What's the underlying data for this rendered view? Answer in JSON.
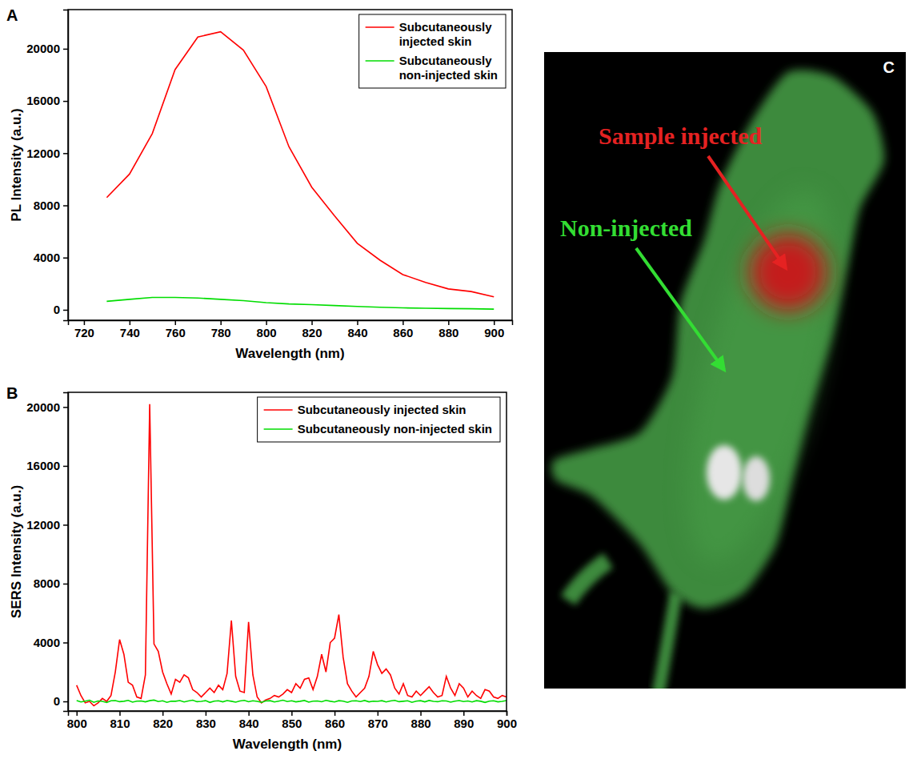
{
  "chart_data": [
    {
      "type": "line",
      "panel": "A",
      "x_label": "Wavelength (nm)",
      "y_label": "PL Intensity (a.u.)",
      "x": [
        730,
        740,
        750,
        760,
        770,
        780,
        790,
        800,
        810,
        820,
        830,
        840,
        850,
        860,
        870,
        880,
        890,
        900
      ],
      "series": [
        {
          "name": "Subcutaneously injected skin",
          "color": "#ff0000",
          "values": [
            8600,
            10400,
            13500,
            18400,
            20900,
            21300,
            19900,
            17100,
            12500,
            9400,
            7200,
            5100,
            3800,
            2700,
            2100,
            1600,
            1400,
            1000
          ]
        },
        {
          "name": "Subcutaneously non-injected skin",
          "color": "#00dd00",
          "values": [
            650,
            800,
            950,
            950,
            900,
            800,
            700,
            550,
            450,
            400,
            330,
            260,
            200,
            150,
            120,
            100,
            80,
            50
          ]
        }
      ],
      "xlim": [
        713,
        908
      ],
      "ylim": [
        -800,
        23000
      ],
      "xticks": [
        720,
        740,
        760,
        780,
        800,
        820,
        840,
        860,
        880,
        900
      ],
      "yticks": [
        0,
        4000,
        8000,
        12000,
        16000,
        20000
      ],
      "grid": false,
      "legend": "upper right"
    },
    {
      "type": "line",
      "panel": "B",
      "x_label": "Wavelength (nm)",
      "y_label": "SERS Intensity (a.u.)",
      "x": [
        800,
        801,
        802,
        803,
        804,
        805,
        806,
        807,
        808,
        809,
        810,
        811,
        812,
        813,
        814,
        815,
        816,
        817,
        818,
        819,
        820,
        821,
        822,
        823,
        824,
        825,
        826,
        827,
        828,
        829,
        830,
        831,
        832,
        833,
        834,
        835,
        836,
        837,
        838,
        839,
        840,
        841,
        842,
        843,
        844,
        845,
        846,
        847,
        848,
        849,
        850,
        851,
        852,
        853,
        854,
        855,
        856,
        857,
        858,
        859,
        860,
        861,
        862,
        863,
        864,
        865,
        866,
        867,
        868,
        869,
        870,
        871,
        872,
        873,
        874,
        875,
        876,
        877,
        878,
        879,
        880,
        881,
        882,
        883,
        884,
        885,
        886,
        887,
        888,
        889,
        890,
        891,
        892,
        893,
        894,
        895,
        896,
        897,
        898,
        899,
        900
      ],
      "series": [
        {
          "name": "Subcutaneously injected skin",
          "color": "#ff0000",
          "values": [
            1100,
            400,
            -100,
            0,
            -300,
            -100,
            200,
            0,
            400,
            2000,
            4200,
            3200,
            1300,
            1100,
            300,
            200,
            1800,
            20200,
            3900,
            3400,
            2000,
            1200,
            500,
            1500,
            1300,
            1800,
            1600,
            800,
            600,
            300,
            600,
            900,
            600,
            1100,
            800,
            1900,
            5500,
            1700,
            700,
            600,
            5400,
            1800,
            300,
            -100,
            100,
            200,
            400,
            300,
            500,
            800,
            600,
            1200,
            900,
            1500,
            1600,
            800,
            1700,
            3200,
            2000,
            4000,
            4300,
            5900,
            3000,
            1200,
            700,
            300,
            600,
            900,
            1700,
            3400,
            2500,
            1900,
            2200,
            1800,
            900,
            500,
            1200,
            400,
            300,
            700,
            400,
            700,
            1000,
            600,
            300,
            400,
            1700,
            900,
            400,
            1200,
            900,
            300,
            700,
            400,
            200,
            800,
            700,
            300,
            200,
            400,
            300
          ]
        },
        {
          "name": "Subcutaneously non-injected skin",
          "color": "#00dd00",
          "values": [
            60,
            -40,
            20,
            80,
            -60,
            30,
            0,
            -80,
            40,
            60,
            -20,
            10,
            70,
            -50,
            20,
            30,
            -30,
            50,
            90,
            -10,
            40,
            -60,
            20,
            10,
            60,
            -40,
            30,
            80,
            -20,
            0,
            50,
            -70,
            20,
            40,
            -30,
            60,
            10,
            -50,
            30,
            70,
            -20,
            40,
            0,
            -60,
            30,
            50,
            -40,
            20,
            80,
            -10,
            40,
            -30,
            10,
            60,
            -50,
            20,
            30,
            -20,
            70,
            10,
            -40,
            50,
            20,
            -60,
            30,
            40,
            -10,
            60,
            -30,
            20,
            0,
            50,
            -40,
            30,
            70,
            -20,
            10,
            40,
            -60,
            20,
            50,
            -30,
            60,
            0,
            -20,
            40,
            30,
            -50,
            20,
            60,
            -10,
            30,
            -40,
            50,
            10,
            -70,
            20,
            40,
            -30,
            0,
            60
          ]
        }
      ],
      "xlim": [
        798,
        900
      ],
      "ylim": [
        -650,
        21000
      ],
      "xticks": [
        800,
        810,
        820,
        830,
        840,
        850,
        860,
        870,
        880,
        890,
        900
      ],
      "yticks": [
        0,
        4000,
        8000,
        12000,
        16000,
        20000
      ],
      "grid": false,
      "legend": "upper right"
    }
  ],
  "image_panel": {
    "panel": "C",
    "annotations": [
      {
        "text": "Sample injected",
        "color": "#e52222"
      },
      {
        "text": "Non-injected",
        "color": "#33dd33"
      }
    ]
  }
}
